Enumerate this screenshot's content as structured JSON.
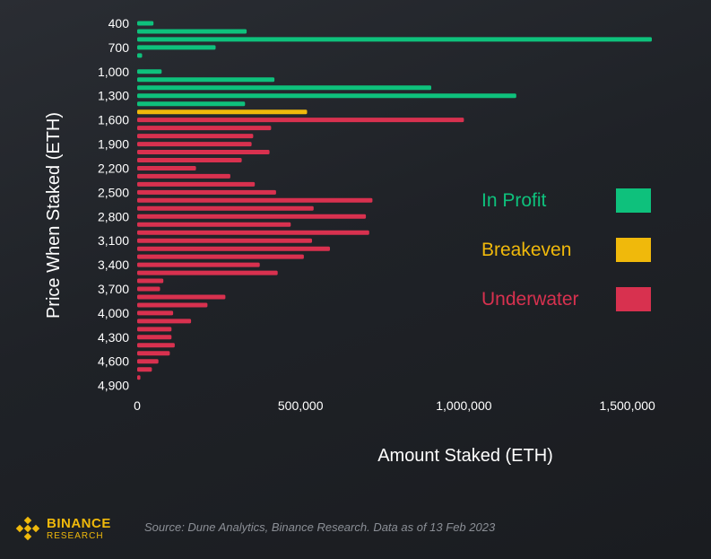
{
  "chart_data": {
    "type": "bar",
    "orientation": "horizontal",
    "xlabel": "Amount Staked (ETH)",
    "ylabel": "Price When Staked (ETH)",
    "xlim": [
      0,
      1600000
    ],
    "xticks": [
      {
        "value": 0,
        "label": "0"
      },
      {
        "value": 500000,
        "label": "500,000"
      },
      {
        "value": 1000000,
        "label": "1,000,000"
      },
      {
        "value": 1500000,
        "label": "1,500,000"
      }
    ],
    "ytick_labels": [
      "400",
      "700",
      "1,000",
      "1,300",
      "1,600",
      "1,900",
      "2,200",
      "2,500",
      "2,800",
      "3,100",
      "3,400",
      "3,700",
      "4,000",
      "4,300",
      "4,600",
      "4,900"
    ],
    "grid": false,
    "legend_position": "right",
    "legend": [
      {
        "key": "profit",
        "label": "In Profit",
        "color": "#0ec17c"
      },
      {
        "key": "breakeven",
        "label": "Breakeven",
        "color": "#f0b90b"
      },
      {
        "key": "underwater",
        "label": "Underwater",
        "color": "#d8314f"
      }
    ],
    "categories": [
      400,
      500,
      600,
      700,
      800,
      900,
      1000,
      1100,
      1200,
      1300,
      1400,
      1500,
      1600,
      1700,
      1800,
      1900,
      2000,
      2100,
      2200,
      2300,
      2400,
      2500,
      2600,
      2700,
      2800,
      2900,
      3000,
      3100,
      3200,
      3300,
      3400,
      3500,
      3600,
      3700,
      3800,
      3900,
      4000,
      4100,
      4200,
      4300,
      4400,
      4500,
      4600,
      4700,
      4800,
      4900
    ],
    "values": [
      50000,
      335000,
      1575000,
      240000,
      15000,
      0,
      75000,
      420000,
      900000,
      1160000,
      330000,
      520000,
      1000000,
      410000,
      355000,
      350000,
      405000,
      320000,
      180000,
      285000,
      360000,
      425000,
      720000,
      540000,
      700000,
      470000,
      710000,
      535000,
      590000,
      510000,
      375000,
      430000,
      80000,
      70000,
      270000,
      215000,
      110000,
      165000,
      105000,
      105000,
      115000,
      100000,
      65000,
      45000,
      10000,
      0
    ],
    "status": [
      "profit",
      "profit",
      "profit",
      "profit",
      "profit",
      "profit",
      "profit",
      "profit",
      "profit",
      "profit",
      "profit",
      "breakeven",
      "underwater",
      "underwater",
      "underwater",
      "underwater",
      "underwater",
      "underwater",
      "underwater",
      "underwater",
      "underwater",
      "underwater",
      "underwater",
      "underwater",
      "underwater",
      "underwater",
      "underwater",
      "underwater",
      "underwater",
      "underwater",
      "underwater",
      "underwater",
      "underwater",
      "underwater",
      "underwater",
      "underwater",
      "underwater",
      "underwater",
      "underwater",
      "underwater",
      "underwater",
      "underwater",
      "underwater",
      "underwater",
      "underwater",
      "underwater"
    ]
  },
  "footer": {
    "source": "Source: Dune Analytics, Binance Research. Data as of 13 Feb 2023",
    "logo_brand": "BINANCE",
    "logo_sub": "RESEARCH",
    "logo_icon": "binance-diamond-icon"
  }
}
